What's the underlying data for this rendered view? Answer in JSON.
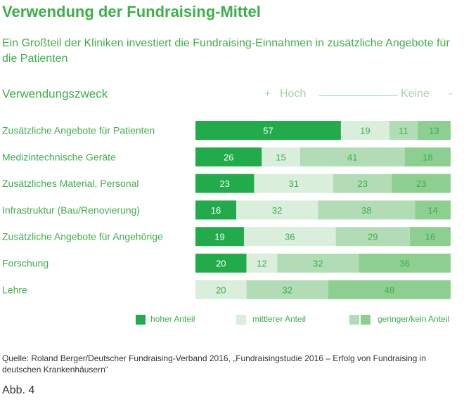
{
  "title": "Verwendung der Fundraising-Mittel",
  "subtitle": "Ein Großteil der Kliniken investiert die Fundraising-Einnahmen in zusätzliche Angebote für die Patienten",
  "column_header": "Verwendungszweck",
  "scale": {
    "plus": "+",
    "high": "Hoch",
    "low": "Keine",
    "minus": "-"
  },
  "legend": {
    "high": "hoher Anteil",
    "medium": "mittlerer Anteil",
    "low": "geringer/kein Anteil"
  },
  "source": "Quelle: Roland Berger/Deutscher Fundraising-Verband 2016, „Fundraisingstudie 2016 – Erfolg von Fundraising in deutschen Krankenhäusern“",
  "figure_label": "Abb. 4",
  "colors": {
    "text": "#3fae4c",
    "high": "#22ab4a",
    "medium": "#d9eedb",
    "low_light": "#b2dcb5",
    "low_dark": "#8ccf91"
  },
  "chart_data": {
    "type": "bar",
    "orientation": "horizontal",
    "stacked": true,
    "categories": [
      "Zusätzliche Angebote für Patienten",
      "Medizintechnische Geräte",
      "Zusätzliches Material, Personal",
      "Infrastruktur (Bau/Renovierung)",
      "Zusätzliche Angebote für Angehörige",
      "Forschung",
      "Lehre"
    ],
    "series": [
      {
        "name": "hoher Anteil",
        "values": [
          57,
          26,
          23,
          16,
          19,
          20,
          0
        ]
      },
      {
        "name": "mittlerer Anteil",
        "values": [
          19,
          15,
          31,
          32,
          36,
          12,
          20
        ]
      },
      {
        "values": [
          11,
          41,
          23,
          38,
          29,
          32,
          32
        ]
      },
      {
        "values": [
          13,
          18,
          23,
          14,
          16,
          36,
          48
        ]
      }
    ]
  }
}
